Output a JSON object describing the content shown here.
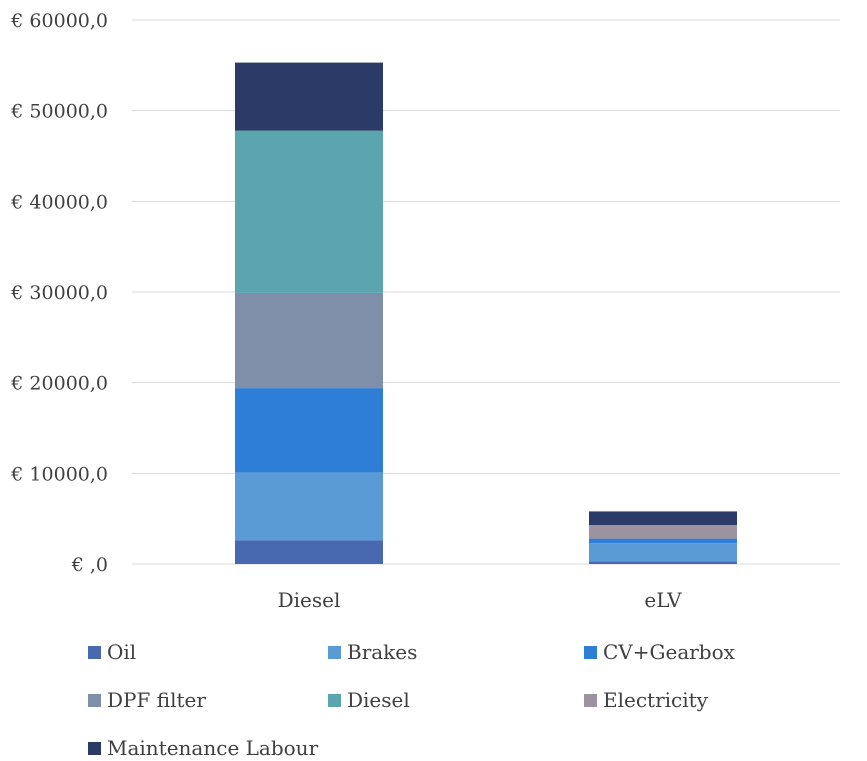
{
  "chart_data": {
    "type": "bar",
    "stacked": true,
    "categories": [
      "Diesel",
      "eLV"
    ],
    "series": [
      {
        "name": "Oil",
        "color": "#4868b0",
        "values": [
          2600,
          300
        ]
      },
      {
        "name": "Brakes",
        "color": "#5b9bd5",
        "values": [
          7500,
          2000
        ]
      },
      {
        "name": "CV+Gearbox",
        "color": "#2e7dd6",
        "values": [
          9300,
          500
        ]
      },
      {
        "name": "DPF filter",
        "color": "#7f8fa9",
        "values": [
          10500,
          0
        ]
      },
      {
        "name": "Diesel",
        "color": "#5aa5ae",
        "values": [
          17900,
          0
        ]
      },
      {
        "name": "Electricity",
        "color": "#9d93a0",
        "values": [
          0,
          1500
        ]
      },
      {
        "name": "Maintenance Labour",
        "color": "#2b3a66",
        "values": [
          7500,
          1500
        ]
      }
    ],
    "ylim": [
      0,
      60000
    ],
    "yticks": [
      0,
      10000,
      20000,
      30000,
      40000,
      50000,
      60000
    ],
    "ytick_labels": [
      "€ ,0",
      "€ 10000,0",
      "€ 20000,0",
      "€ 30000,0",
      "€ 40000,0",
      "€ 50000,0",
      "€ 60000,0"
    ],
    "grid": true,
    "legend_position": "bottom"
  }
}
